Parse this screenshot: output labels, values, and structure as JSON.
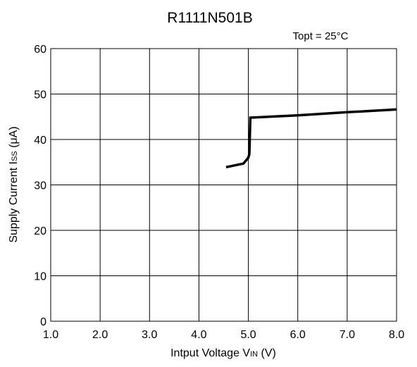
{
  "chart_data": {
    "type": "line",
    "title": "R1111N501B",
    "annotation": "Topt = 25°C",
    "xlabel_main": "Intput Voltage V",
    "xlabel_sub": "IN",
    "xlabel_unit": " (V)",
    "ylabel_main": "Supply Current  I",
    "ylabel_sub": "SS",
    "ylabel_unit": " (μA)",
    "xlim": [
      1.0,
      8.0
    ],
    "ylim": [
      0,
      60
    ],
    "x_ticks": [
      1.0,
      2.0,
      3.0,
      4.0,
      5.0,
      6.0,
      7.0,
      8.0
    ],
    "x_tick_labels": [
      "1.0",
      "2.0",
      "3.0",
      "4.0",
      "5.0",
      "6.0",
      "7.0",
      "8.0"
    ],
    "y_ticks": [
      0,
      10,
      20,
      30,
      40,
      50,
      60
    ],
    "y_tick_labels": [
      "0",
      "10",
      "20",
      "30",
      "40",
      "50",
      "60"
    ],
    "grid": true,
    "series": [
      {
        "x": [
          4.55,
          4.9,
          5.0,
          5.02,
          5.04,
          6.0,
          7.0,
          8.0
        ],
        "y": [
          33.9,
          34.7,
          36.0,
          36.8,
          44.8,
          45.3,
          46.0,
          46.6
        ]
      }
    ]
  }
}
